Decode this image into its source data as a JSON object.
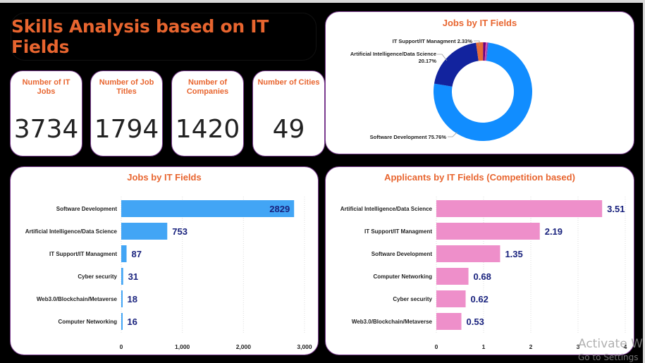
{
  "dashboard": {
    "title": "Skills Analysis based on IT Fields"
  },
  "kpis": [
    {
      "label": "Number of IT Jobs",
      "value": "3734"
    },
    {
      "label": "Number of Job Titles",
      "value": "1794"
    },
    {
      "label": "Number of Companies",
      "value": "1420"
    },
    {
      "label": "Number of Cities",
      "value": "49"
    }
  ],
  "colors": {
    "accent": "#e8652f",
    "card_border": "#7a3b8f",
    "bar_blue": "#42a5f5",
    "bar_pink": "#ee8fca",
    "data_label": "#1a237e"
  },
  "watermark": {
    "line1": "Activate W",
    "line2": "Go to Settings"
  },
  "chart_data": [
    {
      "type": "pie",
      "title": "Jobs by IT Fields",
      "donut": true,
      "slices": [
        {
          "label": "Software Development",
          "value": 75.76,
          "color": "#118dff",
          "data_label": "Software Development 75.76%"
        },
        {
          "label": "Artificial Intelligence/Data Science",
          "value": 20.17,
          "color": "#12239e",
          "data_label": "Artificial Intelligence/Data Science 20.17%"
        },
        {
          "label": "IT Support/IT Managment",
          "value": 2.33,
          "color": "#e66c37",
          "data_label": "IT Support/IT Managment 2.33%"
        },
        {
          "label": "Cyber security",
          "value": 0.83,
          "color": "#6b007b",
          "data_label": ""
        },
        {
          "label": "Web3.0/Blockchain/Metaverse",
          "value": 0.48,
          "color": "#e044a7",
          "data_label": ""
        },
        {
          "label": "Computer Networking",
          "value": 0.43,
          "color": "#744ec2",
          "data_label": ""
        }
      ]
    },
    {
      "type": "bar",
      "orientation": "horizontal",
      "title": "Jobs by IT Fields",
      "categories": [
        "Software Development",
        "Artificial Intelligence/Data Science",
        "IT Support/IT Managment",
        "Cyber security",
        "Web3.0/Blockchain/Metaverse",
        "Computer Networking"
      ],
      "values": [
        2829,
        753,
        87,
        31,
        18,
        16
      ],
      "value_labels": [
        "2829",
        "753",
        "87",
        "31",
        "18",
        "16"
      ],
      "xlim": [
        0,
        3000
      ],
      "xticks": [
        0,
        1000,
        2000,
        3000
      ],
      "xtick_labels": [
        "0",
        "1,000",
        "2,000",
        "3,000"
      ],
      "grid": true,
      "xlabel": "",
      "ylabel": ""
    },
    {
      "type": "bar",
      "orientation": "horizontal",
      "title": "Applicants by IT Fields (Competition based)",
      "categories": [
        "Artificial Intelligence/Data Science",
        "IT Support/IT Managment",
        "Software Development",
        "Computer Networking",
        "Cyber security",
        "Web3.0/Blockchain/Metaverse"
      ],
      "values": [
        3.51,
        2.19,
        1.35,
        0.68,
        0.62,
        0.53
      ],
      "value_labels": [
        "3.51",
        "2.19",
        "1.35",
        "0.68",
        "0.62",
        "0.53"
      ],
      "xlim": [
        0,
        4
      ],
      "xticks": [
        0,
        1,
        2,
        3,
        4
      ],
      "xtick_labels": [
        "0",
        "1",
        "2",
        "3",
        "4"
      ],
      "grid": true,
      "xlabel": "",
      "ylabel": ""
    }
  ]
}
